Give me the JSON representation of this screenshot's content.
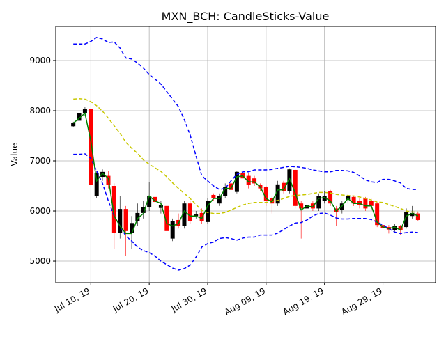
{
  "chart_data": {
    "type": "candlestick",
    "title": "MXN_BCH: CandleSticks-Value",
    "y_label": "Value",
    "x": [
      "2019-07-07",
      "2019-07-08",
      "2019-07-09",
      "2019-07-10",
      "2019-07-11",
      "2019-07-12",
      "2019-07-13",
      "2019-07-14",
      "2019-07-15",
      "2019-07-16",
      "2019-07-17",
      "2019-07-18",
      "2019-07-19",
      "2019-07-20",
      "2019-07-21",
      "2019-07-22",
      "2019-07-23",
      "2019-07-24",
      "2019-07-25",
      "2019-07-26",
      "2019-07-27",
      "2019-07-28",
      "2019-07-29",
      "2019-07-30",
      "2019-07-31",
      "2019-08-01",
      "2019-08-02",
      "2019-08-03",
      "2019-08-04",
      "2019-08-05",
      "2019-08-06",
      "2019-08-07",
      "2019-08-08",
      "2019-08-09",
      "2019-08-10",
      "2019-08-11",
      "2019-08-12",
      "2019-08-13",
      "2019-08-14",
      "2019-08-15",
      "2019-08-16",
      "2019-08-17",
      "2019-08-18",
      "2019-08-19",
      "2019-08-20",
      "2019-08-21",
      "2019-08-22",
      "2019-08-23",
      "2019-08-24",
      "2019-08-25",
      "2019-08-26",
      "2019-08-27",
      "2019-08-28",
      "2019-08-29",
      "2019-08-30",
      "2019-08-31",
      "2019-09-01",
      "2019-09-02",
      "2019-09-03",
      "2019-09-04"
    ],
    "open": [
      7690,
      7800,
      7950,
      8040,
      6300,
      6680,
      6700,
      6500,
      5560,
      6040,
      5560,
      5800,
      5960,
      6080,
      6280,
      6060,
      6100,
      5450,
      5820,
      5700,
      6150,
      5900,
      5960,
      5780,
      6320,
      6150,
      6300,
      6550,
      6380,
      6750,
      6700,
      6650,
      6520,
      6480,
      6250,
      6150,
      6560,
      6400,
      6820,
      6150,
      6050,
      6150,
      6050,
      6200,
      6400,
      6050,
      6020,
      6220,
      6280,
      6200,
      6250,
      6200,
      6150,
      5720,
      5680,
      5620,
      5700,
      5680,
      5900,
      5950
    ],
    "high": [
      7780,
      8000,
      8080,
      8060,
      6800,
      6830,
      6800,
      6550,
      6300,
      6100,
      5900,
      6150,
      6200,
      6570,
      6350,
      6200,
      6150,
      5850,
      5950,
      6200,
      6200,
      6000,
      6050,
      6250,
      6350,
      6350,
      6550,
      6600,
      6800,
      6800,
      6750,
      6700,
      6550,
      6500,
      6300,
      6600,
      6600,
      6850,
      6830,
      6200,
      6200,
      6200,
      6350,
      6400,
      6420,
      6100,
      6200,
      6330,
      6300,
      6250,
      6280,
      6250,
      6180,
      5760,
      5720,
      5750,
      5720,
      6050,
      6100,
      5980
    ],
    "low": [
      7680,
      7760,
      7900,
      6200,
      6250,
      6600,
      6450,
      5250,
      5450,
      5100,
      5250,
      5700,
      5850,
      6000,
      6100,
      5950,
      5500,
      5400,
      5650,
      5650,
      5750,
      5850,
      5750,
      5750,
      6200,
      6100,
      6250,
      6350,
      6350,
      6550,
      6450,
      6500,
      6400,
      6100,
      5950,
      6100,
      6350,
      6350,
      6050,
      5450,
      6000,
      6000,
      6000,
      6150,
      6100,
      5700,
      5950,
      6150,
      6100,
      6050,
      6000,
      6000,
      5680,
      5550,
      5550,
      5580,
      5520,
      5650,
      5850,
      5800
    ],
    "close": [
      7760,
      7950,
      8030,
      6520,
      6750,
      6780,
      6520,
      5560,
      6040,
      5600,
      5760,
      5960,
      6080,
      6300,
      6180,
      6120,
      5600,
      5800,
      5700,
      6150,
      5800,
      5930,
      5800,
      6200,
      6260,
      6300,
      6480,
      6420,
      6780,
      6650,
      6520,
      6550,
      6450,
      6200,
      6150,
      6530,
      6400,
      6830,
      6100,
      6050,
      6120,
      6050,
      6300,
      6300,
      6150,
      5980,
      6150,
      6300,
      6150,
      6120,
      6050,
      6100,
      5720,
      5660,
      5630,
      5700,
      5620,
      5980,
      5960,
      5820
    ],
    "up_color": "#000000",
    "down_color": "#ff0000",
    "lines": [
      {
        "color": "#0000ff",
        "dashed": true,
        "values": [
          9330,
          9330,
          9330,
          9380,
          9460,
          9430,
          9360,
          9370,
          9250,
          9050,
          9030,
          8950,
          8850,
          8720,
          8630,
          8530,
          8380,
          8230,
          8080,
          7820,
          7520,
          7100,
          6700,
          6600,
          6500,
          6430,
          6450,
          6600,
          6730,
          6780,
          6780,
          6820,
          6820,
          6820,
          6830,
          6850,
          6870,
          6890,
          6880,
          6870,
          6850,
          6820,
          6800,
          6780,
          6780,
          6810,
          6810,
          6800,
          6770,
          6700,
          6620,
          6580,
          6570,
          6630,
          6630,
          6600,
          6560,
          6450,
          6430,
          6430
        ]
      },
      {
        "color": "#0000ff",
        "dashed": true,
        "values": [
          7130,
          7130,
          7140,
          7050,
          6800,
          6550,
          6200,
          5900,
          5700,
          5500,
          5400,
          5280,
          5210,
          5170,
          5100,
          5000,
          4930,
          4860,
          4820,
          4850,
          4920,
          5080,
          5280,
          5350,
          5380,
          5450,
          5470,
          5450,
          5420,
          5460,
          5480,
          5480,
          5520,
          5520,
          5520,
          5560,
          5630,
          5700,
          5760,
          5770,
          5820,
          5900,
          5950,
          5960,
          5920,
          5860,
          5840,
          5840,
          5850,
          5850,
          5850,
          5830,
          5780,
          5720,
          5650,
          5580,
          5550,
          5570,
          5580,
          5570
        ]
      },
      {
        "color": "#c8c800",
        "dashed": true,
        "values": [
          8230,
          8240,
          8230,
          8180,
          8100,
          7990,
          7850,
          7700,
          7550,
          7370,
          7250,
          7150,
          7020,
          6930,
          6860,
          6790,
          6680,
          6560,
          6450,
          6350,
          6250,
          6130,
          6010,
          5970,
          5950,
          5950,
          5970,
          6020,
          6070,
          6120,
          6150,
          6170,
          6170,
          6170,
          6190,
          6210,
          6250,
          6290,
          6310,
          6320,
          6330,
          6350,
          6370,
          6370,
          6360,
          6330,
          6320,
          6310,
          6300,
          6280,
          6250,
          6220,
          6180,
          6170,
          6130,
          6090,
          6050,
          6000,
          5980,
          5980
        ]
      },
      {
        "color": "#008000",
        "dashed": false,
        "values": [
          7750,
          7850,
          7950,
          7400,
          6600,
          6750,
          6650,
          5900,
          5700,
          5550,
          5550,
          5850,
          5950,
          6300,
          6200,
          6150,
          5750,
          5700,
          5750,
          6000,
          5900,
          5900,
          5850,
          6100,
          6250,
          6250,
          6450,
          6450,
          6680,
          6700,
          6580,
          6580,
          6480,
          6250,
          6180,
          6420,
          6420,
          6650,
          6350,
          6020,
          6100,
          6080,
          6250,
          6270,
          6200,
          6000,
          6100,
          6250,
          6150,
          6150,
          6100,
          6100,
          5780,
          5680,
          5650,
          5680,
          5620,
          5900,
          5950,
          5900
        ]
      }
    ],
    "xlim": [
      "2019-07-04",
      "2019-09-07"
    ],
    "xticks": [
      {
        "value": "2019-07-10",
        "label": "Jul 10, 19"
      },
      {
        "value": "2019-07-20",
        "label": "Jul 20, 19"
      },
      {
        "value": "2019-07-30",
        "label": "Jul 30, 19"
      },
      {
        "value": "2019-08-09",
        "label": "Aug 09, 19"
      },
      {
        "value": "2019-08-19",
        "label": "Aug 19, 19"
      },
      {
        "value": "2019-08-29",
        "label": "Aug 29, 19"
      }
    ],
    "ylim": [
      4570,
      9680
    ],
    "yticks": [
      5000,
      6000,
      7000,
      8000,
      9000
    ],
    "grid": true
  }
}
